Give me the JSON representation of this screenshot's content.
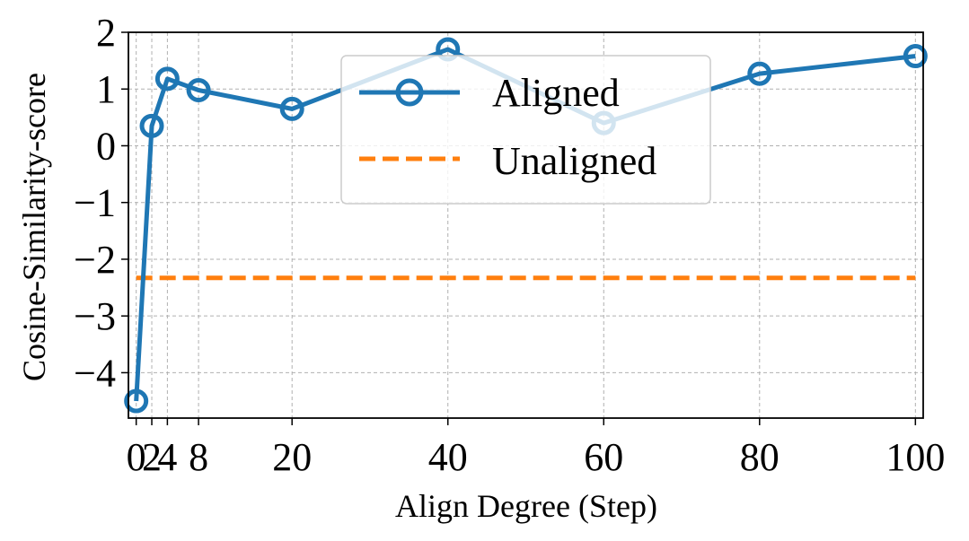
{
  "chart_data": {
    "type": "line",
    "xlabel": "Align Degree (Step)",
    "ylabel": "Cosine-Similarity-score",
    "xlim": [
      -1,
      101
    ],
    "ylim": [
      -4.8,
      2.0
    ],
    "x_ticks": [
      0,
      2,
      4,
      8,
      20,
      40,
      60,
      80,
      100
    ],
    "x_tick_labels": [
      "0",
      "2",
      "4",
      "8",
      "20",
      "40",
      "60",
      "80",
      "100"
    ],
    "y_ticks": [
      2,
      1,
      0,
      -1,
      -2,
      -3,
      -4
    ],
    "y_tick_labels": [
      "2",
      "1",
      "0",
      "−1",
      "−2",
      "−3",
      "−4"
    ],
    "grid": true,
    "legend_position": "upper-center",
    "series": [
      {
        "name": "Aligned",
        "style": "solid-line-circle-markers",
        "color": "#1f77b4",
        "x": [
          0,
          2,
          4,
          8,
          20,
          40,
          60,
          80,
          100
        ],
        "y": [
          -4.5,
          0.35,
          1.18,
          0.98,
          0.65,
          1.7,
          0.4,
          1.27,
          1.58
        ]
      },
      {
        "name": "Unaligned",
        "style": "dashed-line",
        "color": "#ff7f0e",
        "x": [
          0,
          100
        ],
        "y": [
          -2.33,
          -2.33
        ]
      }
    ]
  }
}
